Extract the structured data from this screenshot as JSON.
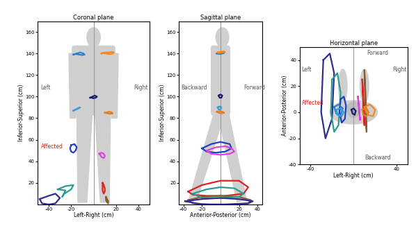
{
  "chart_data": [
    {
      "type": "line",
      "title": "Coronal plane",
      "x_label": "Left-Right (cm)",
      "y_label": "Inferior-Superior (cm)",
      "xlim": [
        -50,
        50
      ],
      "ylim": [
        0,
        170
      ],
      "xticks": [
        -40,
        -20,
        20,
        40
      ],
      "yticks": [
        20,
        40,
        60,
        80,
        100,
        120,
        140,
        160
      ],
      "annotations": [
        {
          "text": "Left",
          "color": "#555555"
        },
        {
          "text": "Right",
          "color": "#555555"
        },
        {
          "text": "Affected",
          "color": "#e02020"
        }
      ],
      "series": [
        {
          "color": "#2a7fd4",
          "x": [
            -18,
            -15,
            -12,
            -9,
            -8,
            -10,
            -13,
            -16,
            -18
          ],
          "y": [
            139,
            140,
            141,
            140,
            139,
            138.5,
            139,
            139.5,
            139
          ]
        },
        {
          "color": "#f28a1e",
          "x": [
            7,
            10,
            13,
            16,
            18,
            17,
            14,
            11,
            8,
            7
          ],
          "y": [
            140,
            141,
            141,
            141.5,
            141,
            140,
            139.5,
            140,
            140.5,
            140
          ]
        },
        {
          "color": "#1a1a6e",
          "x": [
            -3,
            -1,
            1,
            3,
            2,
            0,
            -2,
            -3
          ],
          "y": [
            99,
            100,
            101,
            100,
            99,
            98.5,
            99,
            99
          ]
        },
        {
          "color": "#3a9ad9",
          "x": [
            -18,
            -16,
            -14,
            -12,
            -13,
            -15,
            -17,
            -18
          ],
          "y": [
            87,
            88,
            89,
            90,
            89.5,
            88.5,
            87.5,
            87
          ]
        },
        {
          "color": "#e67e22",
          "x": [
            10,
            12,
            14,
            16,
            17,
            15,
            12,
            10
          ],
          "y": [
            85,
            85.5,
            86,
            85.5,
            84.5,
            84,
            84.5,
            85
          ]
        },
        {
          "color": "#1f3fbf",
          "x": [
            -20,
            -17,
            -15,
            -16,
            -18,
            -20,
            -21,
            -20
          ],
          "y": [
            55,
            56,
            53,
            50,
            48,
            49,
            52,
            55
          ]
        },
        {
          "color": "#e040e0",
          "x": [
            5,
            7,
            9,
            10,
            9,
            7,
            6,
            5
          ],
          "y": [
            47,
            48,
            47,
            45,
            43,
            44,
            46,
            47
          ]
        },
        {
          "color": "#e02020",
          "x": [
            8,
            9,
            10,
            10,
            9,
            8,
            8
          ],
          "y": [
            20,
            18,
            15,
            12,
            10,
            13,
            20
          ]
        },
        {
          "color": "#8b5a2b",
          "x": [
            11,
            12,
            13,
            13,
            12,
            11,
            11
          ],
          "y": [
            7,
            5,
            3,
            1,
            2,
            4,
            7
          ]
        },
        {
          "color": "#2a9d8f",
          "x": [
            -32,
            -25,
            -18,
            -20,
            -26,
            -28,
            -25,
            -32
          ],
          "y": [
            14,
            17,
            18,
            14,
            10,
            7,
            13,
            14
          ]
        },
        {
          "color": "#2e2e8f",
          "x": [
            -48,
            -40,
            -34,
            -30,
            -34,
            -40,
            -46,
            -48
          ],
          "y": [
            5,
            8,
            10,
            6,
            1,
            0,
            1,
            5
          ]
        }
      ]
    },
    {
      "type": "line",
      "title": "Sagittal plane",
      "x_label": "Anterior-Posterior (cm)",
      "y_label": "Inferior-Superior (cm)",
      "xlim": [
        -45,
        45
      ],
      "ylim": [
        0,
        170
      ],
      "xticks": [
        -40,
        -20,
        20,
        40
      ],
      "yticks": [
        20,
        40,
        60,
        80,
        100,
        120,
        140,
        160
      ],
      "annotations": [
        {
          "text": "Backward",
          "color": "#555555"
        },
        {
          "text": "Forward",
          "color": "#555555"
        }
      ],
      "series": [
        {
          "color": "#2a7fd4",
          "x": [
            -4,
            -1,
            2,
            4,
            2,
            -1,
            -4
          ],
          "y": [
            140,
            140.5,
            141,
            140.5,
            140,
            139.5,
            140
          ]
        },
        {
          "color": "#f28a1e",
          "x": [
            -3,
            0,
            3,
            5,
            2,
            -1,
            -3
          ],
          "y": [
            141,
            141.5,
            142,
            141.5,
            141,
            140.5,
            141
          ]
        },
        {
          "color": "#1a1a6e",
          "x": [
            -2,
            0,
            2,
            1,
            -1,
            -2
          ],
          "y": [
            101,
            102,
            101,
            99,
            99,
            101
          ]
        },
        {
          "color": "#3a9ad9",
          "x": [
            -3,
            -1,
            1,
            0,
            -2,
            -3
          ],
          "y": [
            90,
            91,
            90,
            88,
            88,
            90
          ]
        },
        {
          "color": "#e67e22",
          "x": [
            -4,
            -1,
            2,
            4,
            1,
            -2,
            -4
          ],
          "y": [
            86,
            86.5,
            86,
            85,
            84.5,
            85,
            86
          ]
        },
        {
          "color": "#1f3fbf",
          "x": [
            -20,
            -10,
            0,
            10,
            12,
            5,
            -5,
            -15,
            -20
          ],
          "y": [
            52,
            56,
            58,
            56,
            52,
            49,
            48,
            49,
            52
          ]
        },
        {
          "color": "#e040e0",
          "x": [
            -15,
            -5,
            5,
            12,
            15,
            10,
            0,
            -10,
            -15
          ],
          "y": [
            50,
            53,
            54,
            52,
            49,
            47,
            46,
            47,
            50
          ]
        },
        {
          "color": "#e02020",
          "x": [
            -35,
            -20,
            0,
            20,
            30,
            25,
            5,
            -15,
            -30,
            -35
          ],
          "y": [
            12,
            18,
            22,
            22,
            16,
            10,
            8,
            8,
            9,
            12
          ]
        },
        {
          "color": "#8b5a2b",
          "x": [
            -35,
            -20,
            0,
            20,
            33,
            30,
            10,
            -10,
            -30,
            -35
          ],
          "y": [
            4,
            7,
            8,
            7,
            4,
            1,
            0,
            0,
            1,
            4
          ]
        },
        {
          "color": "#2a9d8f",
          "x": [
            -30,
            -15,
            0,
            15,
            25,
            20,
            0,
            -20,
            -30
          ],
          "y": [
            10,
            14,
            16,
            15,
            10,
            7,
            6,
            6,
            10
          ]
        },
        {
          "color": "#2e2e8f",
          "x": [
            -38,
            -20,
            0,
            20,
            35,
            30,
            5,
            -20,
            -38
          ],
          "y": [
            3,
            5,
            6,
            5,
            3,
            1,
            0,
            0,
            3
          ]
        }
      ]
    },
    {
      "type": "line",
      "title": "Horizontal plane",
      "x_label": "Left-Right (cm)",
      "y_label": "Anterior-Posterior (cm)",
      "xlim": [
        -50,
        50
      ],
      "ylim": [
        -40,
        50
      ],
      "xticks": [
        -40,
        40
      ],
      "yticks": [
        -40,
        -20,
        0,
        20,
        40
      ],
      "annotations": [
        {
          "text": "Forward",
          "color": "#555555"
        },
        {
          "text": "Backward",
          "color": "#555555"
        },
        {
          "text": "Left",
          "color": "#555555"
        },
        {
          "text": "Right",
          "color": "#555555"
        },
        {
          "text": "Affected",
          "color": "#e02020"
        }
      ],
      "series": [
        {
          "color": "#2e2e8f",
          "x": [
            -28,
            -22,
            -18,
            -20,
            -26,
            -30,
            -28
          ],
          "y": [
            40,
            45,
            30,
            -5,
            -20,
            0,
            40
          ]
        },
        {
          "color": "#2a9d8f",
          "x": [
            -20,
            -15,
            -12,
            -14,
            -18,
            -21,
            -20
          ],
          "y": [
            25,
            30,
            15,
            -10,
            -15,
            0,
            25
          ]
        },
        {
          "color": "#1f3fbf",
          "x": [
            -12,
            -9,
            -7,
            -8,
            -11,
            -13,
            -12
          ],
          "y": [
            10,
            12,
            5,
            -5,
            -8,
            0,
            10
          ]
        },
        {
          "color": "#2a7fd4",
          "x": [
            -18,
            -14,
            -10,
            -12,
            -16,
            -18
          ],
          "y": [
            4,
            6,
            3,
            -2,
            -1,
            4
          ]
        },
        {
          "color": "#3a9ad9",
          "x": [
            -16,
            -12,
            -9,
            -11,
            -15,
            -16
          ],
          "y": [
            2,
            3,
            0,
            -3,
            -2,
            2
          ]
        },
        {
          "color": "#1a1a6e",
          "x": [
            -2,
            0,
            2,
            1,
            -1,
            -2
          ],
          "y": [
            2,
            3,
            1,
            -2,
            -1,
            2
          ]
        },
        {
          "color": "#e040e0",
          "x": [
            4,
            5,
            6,
            5,
            4
          ],
          "y": [
            12,
            4,
            -6,
            2,
            12
          ]
        },
        {
          "color": "#e02020",
          "x": [
            8,
            9,
            10,
            9,
            8
          ],
          "y": [
            25,
            10,
            -10,
            5,
            25
          ]
        },
        {
          "color": "#8b5a2b",
          "x": [
            10,
            11,
            12,
            11,
            10
          ],
          "y": [
            32,
            15,
            -15,
            0,
            32
          ]
        },
        {
          "color": "#f28a1e",
          "x": [
            10,
            15,
            20,
            18,
            13,
            10
          ],
          "y": [
            4,
            6,
            2,
            -3,
            -2,
            4
          ]
        },
        {
          "color": "#e67e22",
          "x": [
            8,
            12,
            14,
            12,
            9,
            8
          ],
          "y": [
            2,
            3,
            0,
            -3,
            -2,
            2
          ]
        }
      ]
    }
  ]
}
